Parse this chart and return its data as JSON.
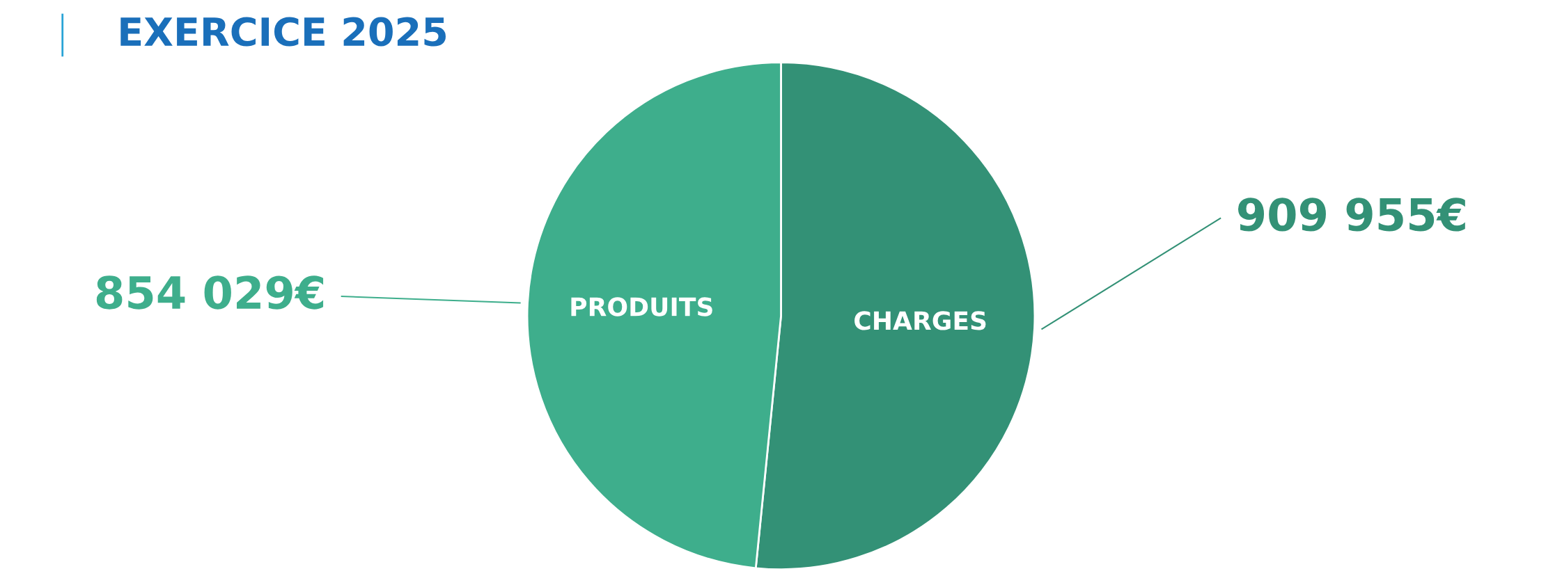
{
  "chart_data": {
    "type": "pie",
    "title": "EXERCICE 2025",
    "categories": [
      "CHARGES",
      "PRODUITS"
    ],
    "values": [
      909955,
      854029
    ],
    "value_labels": [
      "909 955€",
      "854 029€"
    ],
    "colors": [
      "#339176",
      "#3eae8c"
    ]
  }
}
